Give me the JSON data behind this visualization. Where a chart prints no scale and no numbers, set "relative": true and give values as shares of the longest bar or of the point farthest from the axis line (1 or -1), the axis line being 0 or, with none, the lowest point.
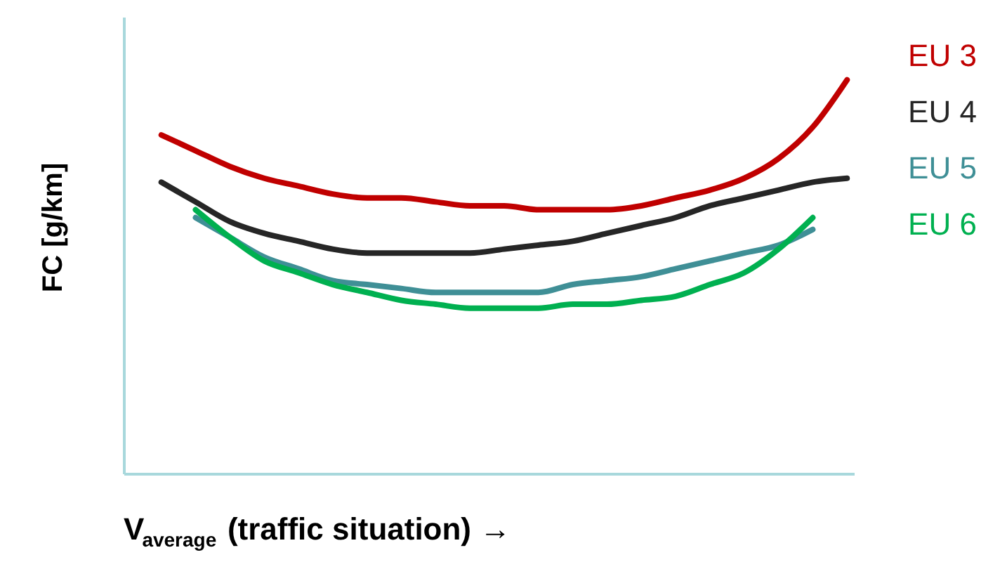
{
  "chart_data": {
    "type": "line",
    "relative": true,
    "xlabel": "V$_{average}$ (traffic situation) →",
    "ylabel": "FC [g/km]",
    "grid": false,
    "tick_labels": false,
    "line_style": "solid",
    "categories": [
      null,
      null,
      null,
      null,
      null,
      null,
      null,
      null,
      null,
      null,
      null,
      null,
      null,
      null,
      null,
      null,
      null,
      null,
      null,
      null,
      null
    ],
    "series": [
      {
        "name": "EU 3",
        "color": "#c00000",
        "values": [
          0.86,
          0.82,
          0.78,
          0.75,
          0.73,
          0.71,
          0.7,
          0.7,
          0.69,
          0.68,
          0.68,
          0.67,
          0.67,
          0.67,
          0.68,
          0.7,
          0.72,
          0.75,
          0.8,
          0.88,
          1.0
        ]
      },
      {
        "name": "EU 4",
        "color": "#262626",
        "values": [
          0.74,
          0.69,
          0.64,
          0.61,
          0.59,
          0.57,
          0.56,
          0.56,
          0.56,
          0.56,
          0.57,
          0.58,
          0.59,
          0.61,
          0.63,
          0.65,
          0.68,
          0.7,
          0.72,
          0.74,
          0.75
        ]
      },
      {
        "name": "EU 5",
        "color": "#3f8f96",
        "values": [
          null,
          0.65,
          0.6,
          0.55,
          0.52,
          0.49,
          0.48,
          0.47,
          0.46,
          0.46,
          0.46,
          0.46,
          0.48,
          0.49,
          0.5,
          0.52,
          0.54,
          0.56,
          0.58,
          0.62,
          null
        ]
      },
      {
        "name": "EU 6",
        "color": "#00b050",
        "values": [
          null,
          0.67,
          0.6,
          0.54,
          0.51,
          0.48,
          0.46,
          0.44,
          0.43,
          0.42,
          0.42,
          0.42,
          0.43,
          0.43,
          0.44,
          0.45,
          0.48,
          0.51,
          0.57,
          0.65,
          null
        ]
      }
    ]
  }
}
